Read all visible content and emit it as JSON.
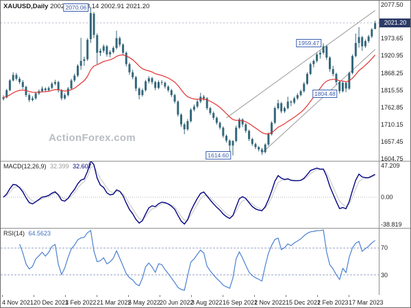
{
  "header": {
    "symbol": "XAUUSD,Daily",
    "ohlc": "2002.98 2028.14 2002.91 2021.20"
  },
  "watermark": "ActionForex.com",
  "main_axis": {
    "labels": [
      "2077.50",
      "1973.65",
      "1920.95",
      "1868.25",
      "1815.55",
      "1762.85",
      "1710.15",
      "1657.45",
      "1604.75"
    ],
    "prices": [
      2077.5,
      1973.65,
      1920.95,
      1868.25,
      1815.55,
      1762.85,
      1710.15,
      1657.45,
      1604.75
    ],
    "current_badge": "2021.20",
    "current_price": 2021.2
  },
  "macd_panel": {
    "label": "MACD(12,26,9)",
    "signal_value": "32.399",
    "macd_value": "32.607",
    "axis_labels": [
      "47.209",
      "0.00",
      "-38.819"
    ],
    "axis_values": [
      47.209,
      0,
      -38.819
    ],
    "vmax": 52,
    "vmin": -44
  },
  "rsi_panel": {
    "label": "RSI(14)",
    "value": "64.5623",
    "levels": [
      70,
      30
    ]
  },
  "chart_data": {
    "type": "candlestick",
    "symbol": "XAU/USD",
    "timeframe": "Daily",
    "title": "XAUUSD,Daily 2002.98 2028.14 2002.91 2021.20",
    "x_ticks": [
      "4 Nov 2021",
      "20 Dec 2021",
      "3 Feb 2022",
      "21 Mar 2022",
      "5 May 2022",
      "20 Jun 2022",
      "3 Aug 2022",
      "16 Sep 2022",
      "1 Nov 2022",
      "15 Dec 2022",
      "1 Feb 2023",
      "17 Mar 2023"
    ],
    "price_range": {
      "max": 2090,
      "min": 1598
    },
    "marked_levels": {
      "high": 2070.06,
      "swing_high": 1959.47,
      "swing_low": 1804.48,
      "low": 1614.6,
      "last": 2021.2
    },
    "candles": [
      [
        1788,
        1799,
        1783,
        1793
      ],
      [
        1793,
        1819,
        1790,
        1815
      ],
      [
        1815,
        1849,
        1812,
        1845
      ],
      [
        1845,
        1870,
        1842,
        1862
      ],
      [
        1862,
        1868,
        1845,
        1850
      ],
      [
        1850,
        1856,
        1834,
        1840
      ],
      [
        1840,
        1846,
        1819,
        1825
      ],
      [
        1825,
        1829,
        1794,
        1800
      ],
      [
        1800,
        1806,
        1779,
        1785
      ],
      [
        1785,
        1796,
        1781,
        1790
      ],
      [
        1790,
        1810,
        1786,
        1805
      ],
      [
        1805,
        1817,
        1800,
        1812
      ],
      [
        1812,
        1827,
        1808,
        1820
      ],
      [
        1820,
        1824,
        1810,
        1815
      ],
      [
        1815,
        1827,
        1811,
        1822
      ],
      [
        1822,
        1840,
        1818,
        1835
      ],
      [
        1835,
        1847,
        1830,
        1840
      ],
      [
        1840,
        1844,
        1808,
        1815
      ],
      [
        1815,
        1819,
        1784,
        1790
      ],
      [
        1790,
        1806,
        1786,
        1800
      ],
      [
        1800,
        1825,
        1796,
        1820
      ],
      [
        1820,
        1850,
        1816,
        1845
      ],
      [
        1845,
        1866,
        1840,
        1860
      ],
      [
        1860,
        1895,
        1855,
        1890
      ],
      [
        1890,
        1976,
        1878,
        1905
      ],
      [
        1905,
        1918,
        1890,
        1910
      ],
      [
        1910,
        1975,
        1905,
        1970
      ],
      [
        1972,
        2070.06,
        1960,
        2052
      ],
      [
        2050,
        2055,
        1975,
        1985
      ],
      [
        1984,
        1990,
        1895,
        1930
      ],
      [
        1930,
        1943,
        1920,
        1936
      ],
      [
        1936,
        1956,
        1930,
        1950
      ],
      [
        1950,
        1954,
        1918,
        1925
      ],
      [
        1925,
        1938,
        1916,
        1932
      ],
      [
        1932,
        1950,
        1928,
        1945
      ],
      [
        1945,
        1998,
        1940,
        1975
      ],
      [
        1975,
        1980,
        1948,
        1955
      ],
      [
        1955,
        1959,
        1922,
        1930
      ],
      [
        1930,
        1934,
        1888,
        1895
      ],
      [
        1895,
        1900,
        1862,
        1870
      ],
      [
        1870,
        1878,
        1848,
        1855
      ],
      [
        1855,
        1859,
        1812,
        1820
      ],
      [
        1820,
        1824,
        1787,
        1800
      ],
      [
        1800,
        1820,
        1795,
        1815
      ],
      [
        1815,
        1847,
        1811,
        1842
      ],
      [
        1842,
        1858,
        1836,
        1852
      ],
      [
        1852,
        1856,
        1833,
        1840
      ],
      [
        1840,
        1844,
        1815,
        1822
      ],
      [
        1822,
        1845,
        1818,
        1840
      ],
      [
        1840,
        1846,
        1831,
        1838
      ],
      [
        1838,
        1842,
        1820,
        1826
      ],
      [
        1826,
        1830,
        1809,
        1815
      ],
      [
        1815,
        1819,
        1794,
        1800
      ],
      [
        1800,
        1804,
        1774,
        1780
      ],
      [
        1780,
        1784,
        1734,
        1740
      ],
      [
        1740,
        1744,
        1702,
        1710
      ],
      [
        1710,
        1715,
        1680,
        1695
      ],
      [
        1695,
        1726,
        1690,
        1720
      ],
      [
        1720,
        1760,
        1716,
        1755
      ],
      [
        1755,
        1771,
        1750,
        1765
      ],
      [
        1765,
        1786,
        1760,
        1780
      ],
      [
        1780,
        1807,
        1775,
        1795
      ],
      [
        1795,
        1800,
        1783,
        1790
      ],
      [
        1790,
        1794,
        1754,
        1760
      ],
      [
        1760,
        1764,
        1739,
        1745
      ],
      [
        1745,
        1750,
        1724,
        1730
      ],
      [
        1730,
        1734,
        1709,
        1715
      ],
      [
        1715,
        1719,
        1694,
        1700
      ],
      [
        1700,
        1704,
        1669,
        1675
      ],
      [
        1675,
        1679,
        1654,
        1660
      ],
      [
        1660,
        1664,
        1620,
        1645
      ],
      [
        1645,
        1662,
        1614.6,
        1659
      ],
      [
        1659,
        1706,
        1655,
        1700
      ],
      [
        1700,
        1730,
        1696,
        1725
      ],
      [
        1725,
        1729,
        1702,
        1710
      ],
      [
        1710,
        1714,
        1684,
        1690
      ],
      [
        1690,
        1694,
        1659,
        1665
      ],
      [
        1665,
        1669,
        1644,
        1650
      ],
      [
        1650,
        1654,
        1634,
        1640
      ],
      [
        1640,
        1644,
        1627,
        1633
      ],
      [
        1633,
        1638,
        1616,
        1625
      ],
      [
        1625,
        1652,
        1621,
        1648
      ],
      [
        1648,
        1685,
        1644,
        1680
      ],
      [
        1680,
        1720,
        1676,
        1715
      ],
      [
        1715,
        1765,
        1711,
        1760
      ],
      [
        1760,
        1786,
        1755,
        1775
      ],
      [
        1775,
        1779,
        1744,
        1750
      ],
      [
        1750,
        1765,
        1745,
        1760
      ],
      [
        1760,
        1795,
        1756,
        1780
      ],
      [
        1780,
        1784,
        1766,
        1777
      ],
      [
        1777,
        1795,
        1772,
        1790
      ],
      [
        1790,
        1806,
        1785,
        1800
      ],
      [
        1800,
        1817,
        1796,
        1812
      ],
      [
        1812,
        1840,
        1808,
        1835
      ],
      [
        1835,
        1870,
        1831,
        1865
      ],
      [
        1865,
        1900,
        1861,
        1895
      ],
      [
        1895,
        1910,
        1885,
        1905
      ],
      [
        1905,
        1930,
        1900,
        1925
      ],
      [
        1925,
        1936,
        1912,
        1930
      ],
      [
        1930,
        1959.47,
        1925,
        1950
      ],
      [
        1950,
        1954,
        1908,
        1915
      ],
      [
        1915,
        1919,
        1872,
        1880
      ],
      [
        1880,
        1890,
        1858,
        1865
      ],
      [
        1865,
        1869,
        1832,
        1840
      ],
      [
        1840,
        1844,
        1804.48,
        1812
      ],
      [
        1812,
        1842,
        1808,
        1838
      ],
      [
        1838,
        1842,
        1809,
        1820
      ],
      [
        1820,
        1872,
        1816,
        1868
      ],
      [
        1868,
        1925,
        1864,
        1920
      ],
      [
        1920,
        1989,
        1916,
        1960
      ],
      [
        1960,
        2009,
        1946,
        1978
      ],
      [
        1978,
        1982,
        1936,
        1950
      ],
      [
        1950,
        1971,
        1945,
        1966
      ],
      [
        1966,
        1985,
        1960,
        1980
      ],
      [
        1980,
        2006,
        1975,
        2002
      ],
      [
        2002.98,
        2028.14,
        2002.91,
        2021.2
      ]
    ],
    "annotations": [
      {
        "label": "2070.06",
        "idx": 27,
        "price": 2070.06
      },
      {
        "label": "1959.47",
        "idx": 99,
        "price": 1959.47
      },
      {
        "label": "1804.48",
        "idx": 104,
        "price": 1804.48
      },
      {
        "label": "1614.60",
        "idx": 71,
        "price": 1614.6
      }
    ],
    "trendlines": [
      {
        "i1": 69,
        "p1": 1730,
        "i2": 115,
        "p2": 2060
      },
      {
        "i1": 80,
        "p1": 1622,
        "i2": 115,
        "p2": 1940
      }
    ],
    "colors": {
      "candle": "#35677a",
      "ma": "#e03030",
      "macd": "#000080",
      "signal": "#c4c4c4",
      "rsi": "#4a7fd1",
      "trendline": "#999999",
      "level": "#9aa7c7",
      "annotation": "#3a5dae",
      "badge_bg": "#2b3a67"
    }
  }
}
